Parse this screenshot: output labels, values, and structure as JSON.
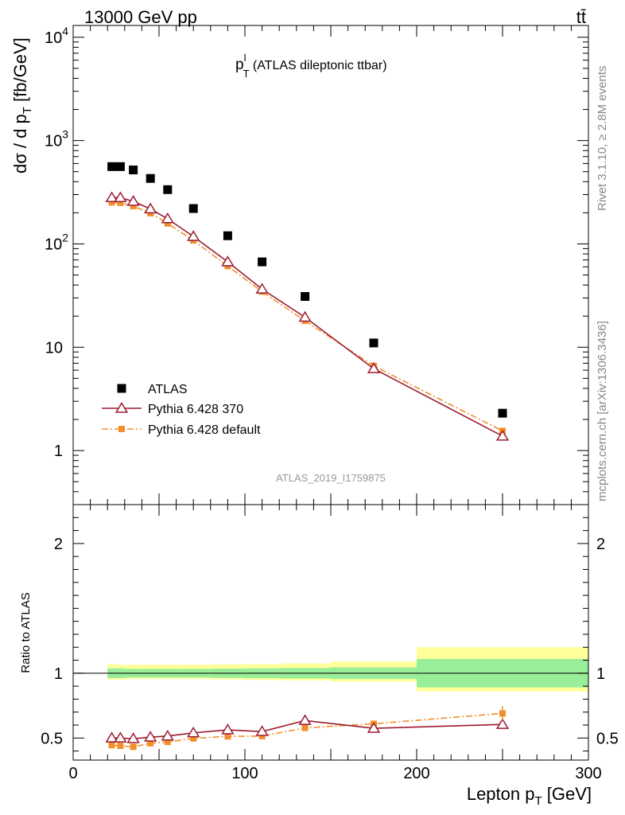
{
  "header": {
    "left": "13000 GeV pp",
    "right": "tt̄"
  },
  "side_text": {
    "rivet": "Rivet 3.1.10, ≥ 2.8M events",
    "mcplots": "mcplots.cern.ch [arXiv:1306.3436]"
  },
  "chart_data": [
    {
      "type": "scatter",
      "title_main": "p",
      "title_sup": "l",
      "title_sub": "T",
      "title_rest": " (ATLAS dileptonic ttbar)",
      "ylabel": "dσ / d p",
      "ylabel_sub": "T",
      "ylabel_rest": " [fb/GeV]",
      "y_scale": "log",
      "ylim": [
        0.3,
        13000
      ],
      "xlim": [
        0,
        300
      ],
      "ytick_labels": [
        {
          "value": 1,
          "base": "1",
          "exp": ""
        },
        {
          "value": 10,
          "base": "10",
          "exp": ""
        },
        {
          "value": 100,
          "base": "10",
          "exp": "2"
        },
        {
          "value": 1000,
          "base": "10",
          "exp": "3"
        },
        {
          "value": 10000,
          "base": "10",
          "exp": "4"
        }
      ],
      "analysis_label": "ATLAS_2019_I1759875",
      "legend_position": "lower-left",
      "series": [
        {
          "name": "ATLAS",
          "color": "#000000",
          "marker": "filled-square",
          "x": [
            22.5,
            27.5,
            35,
            45,
            55,
            70,
            90,
            110,
            135,
            175,
            250
          ],
          "y": [
            560,
            560,
            520,
            430,
            335,
            220,
            120,
            67,
            31,
            11,
            2.3
          ]
        },
        {
          "name": "Pythia 6.428 370",
          "color": "#9b1b30",
          "marker": "open-triangle",
          "line": "solid",
          "x": [
            22.5,
            27.5,
            35,
            45,
            55,
            70,
            90,
            110,
            135,
            175,
            250
          ],
          "y": [
            280,
            280,
            258,
            218,
            175,
            118,
            67,
            36.5,
            19.5,
            6.2,
            1.38
          ]
        },
        {
          "name": "Pythia 6.428 default",
          "color": "#f28e2b",
          "marker": "filled-square",
          "line": "dashdot",
          "x": [
            22.5,
            27.5,
            35,
            45,
            55,
            70,
            90,
            110,
            135,
            175,
            250
          ],
          "y": [
            252,
            250,
            232,
            198,
            158,
            108,
            61,
            34.5,
            18,
            6.6,
            1.55
          ]
        }
      ]
    },
    {
      "type": "scatter",
      "ylabel": "Ratio to ATLAS",
      "xlabel": "Lepton p",
      "xlabel_sub": "T",
      "xlabel_rest": " [GeV]",
      "xlim": [
        0,
        300
      ],
      "ylim": [
        0.33,
        2.3
      ],
      "xtick_labels": [
        "0",
        "100",
        "200",
        "300"
      ],
      "ytick_labels": [
        "0.5",
        "1",
        "2"
      ],
      "bands": {
        "x_edges": [
          20,
          25,
          30,
          40,
          50,
          60,
          80,
          100,
          120,
          150,
          200,
          300
        ],
        "stat_lo": [
          0.963,
          0.963,
          0.967,
          0.967,
          0.967,
          0.967,
          0.965,
          0.963,
          0.96,
          0.955,
          0.89
        ],
        "stat_hi": [
          1.037,
          1.037,
          1.033,
          1.033,
          1.033,
          1.033,
          1.035,
          1.037,
          1.04,
          1.045,
          1.11
        ],
        "total_lo": [
          0.95,
          0.95,
          0.955,
          0.955,
          0.955,
          0.955,
          0.952,
          0.948,
          0.945,
          0.935,
          0.86
        ],
        "total_hi": [
          1.07,
          1.065,
          1.065,
          1.065,
          1.065,
          1.065,
          1.068,
          1.07,
          1.075,
          1.09,
          1.2
        ]
      },
      "series": [
        {
          "name": "Pythia 6.428 370",
          "color": "#9b1b30",
          "marker": "open-triangle",
          "line": "solid",
          "x": [
            22.5,
            27.5,
            35,
            45,
            55,
            70,
            90,
            110,
            135,
            175,
            250
          ],
          "y": [
            0.5,
            0.5,
            0.495,
            0.507,
            0.515,
            0.54,
            0.563,
            0.55,
            0.635,
            0.575,
            0.605
          ]
        },
        {
          "name": "Pythia 6.428 default",
          "color": "#f28e2b",
          "marker": "filled-square",
          "line": "dashdot",
          "x": [
            22.5,
            27.5,
            35,
            45,
            55,
            70,
            90,
            110,
            135,
            175,
            250
          ],
          "y": [
            0.445,
            0.44,
            0.432,
            0.46,
            0.47,
            0.497,
            0.513,
            0.515,
            0.578,
            0.61,
            0.69
          ]
        }
      ]
    }
  ]
}
